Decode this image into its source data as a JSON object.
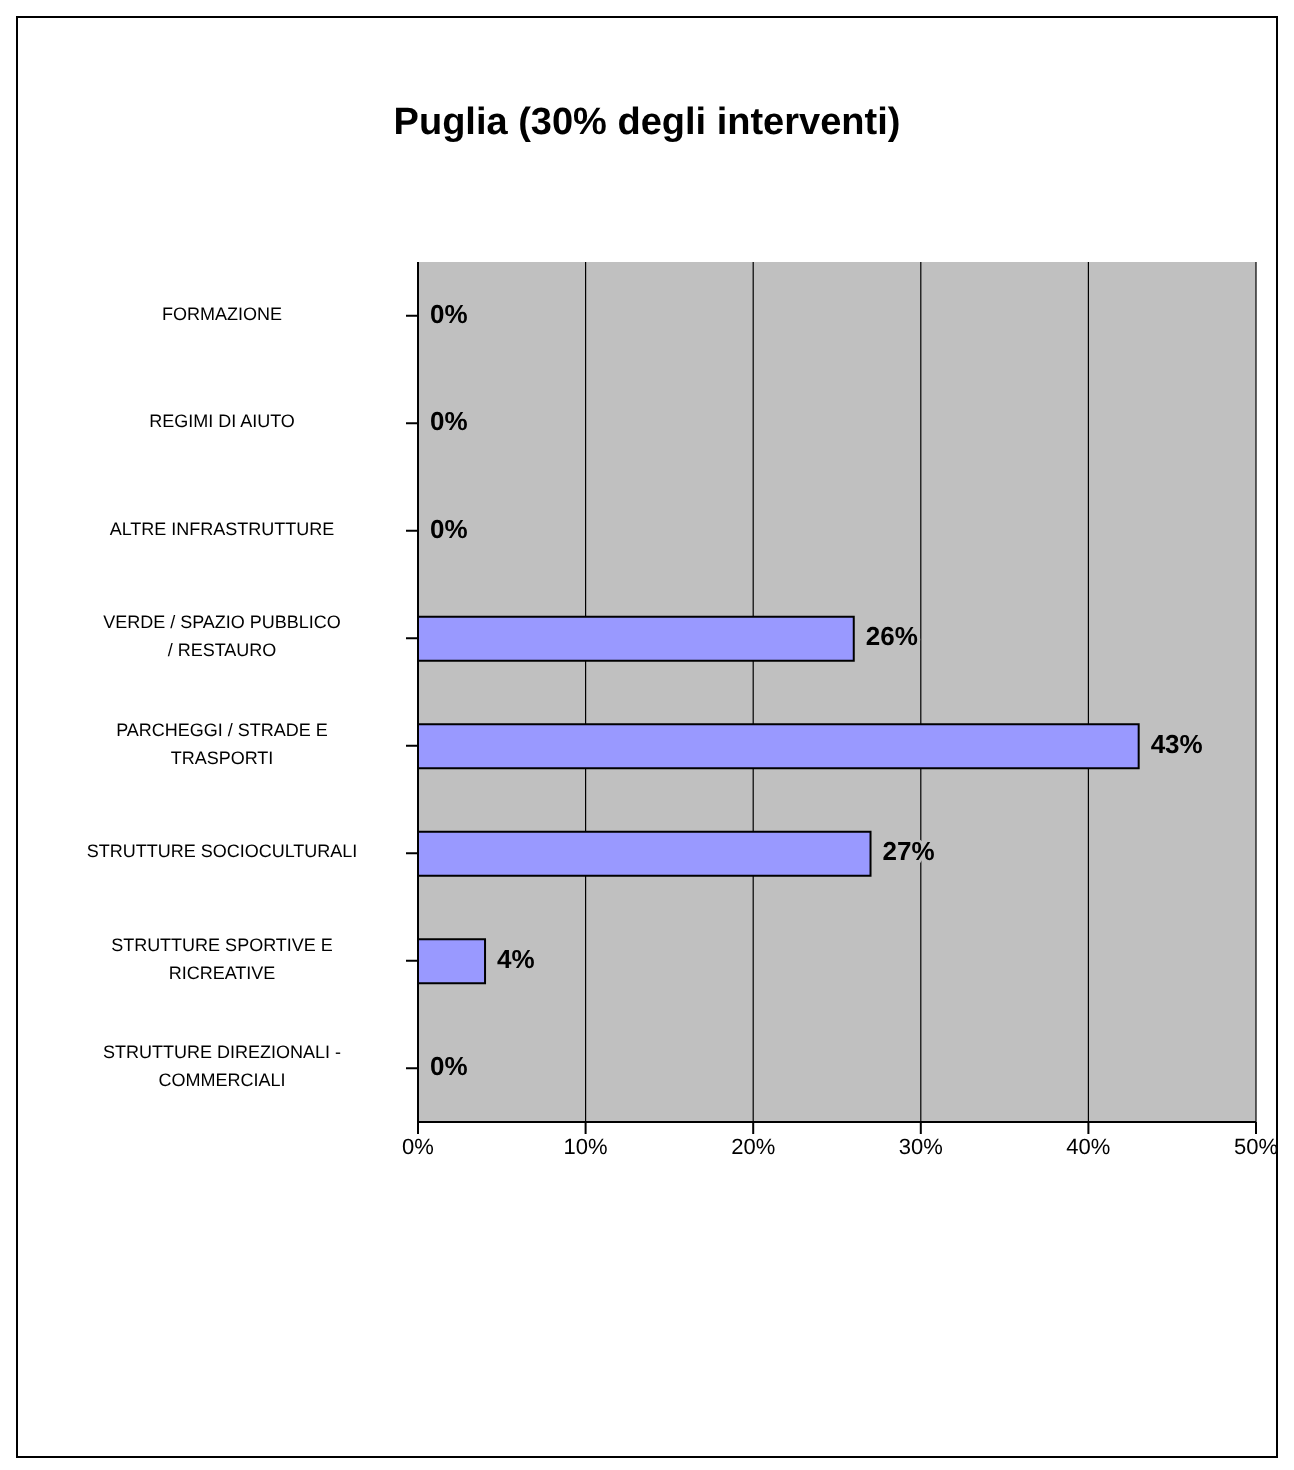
{
  "chart_data": {
    "type": "bar",
    "orientation": "horizontal",
    "title": "Puglia (30% degli interventi)",
    "categories": [
      "FORMAZIONE",
      "REGIMI DI AIUTO",
      "ALTRE INFRASTRUTTURE",
      "VERDE / SPAZIO PUBBLICO / RESTAURO",
      "PARCHEGGI / STRADE E TRASPORTI",
      "STRUTTURE SOCIOCULTURALI",
      "STRUTTURE SPORTIVE E RICREATIVE",
      "STRUTTURE DIREZIONALI - COMMERCIALI"
    ],
    "values": [
      0,
      0,
      0,
      26,
      43,
      27,
      4,
      0
    ],
    "value_labels": [
      "0%",
      "0%",
      "0%",
      "26%",
      "43%",
      "27%",
      "4%",
      "0%"
    ],
    "color": "#9999ff",
    "xlim": [
      0,
      50
    ],
    "xticks": [
      {
        "value": 0,
        "label": "0%"
      },
      {
        "value": 10,
        "label": "10%"
      },
      {
        "value": 20,
        "label": "20%"
      },
      {
        "value": 30,
        "label": "30%"
      },
      {
        "value": 40,
        "label": "40%"
      },
      {
        "value": 50,
        "label": "50%"
      }
    ],
    "grid": "x"
  }
}
